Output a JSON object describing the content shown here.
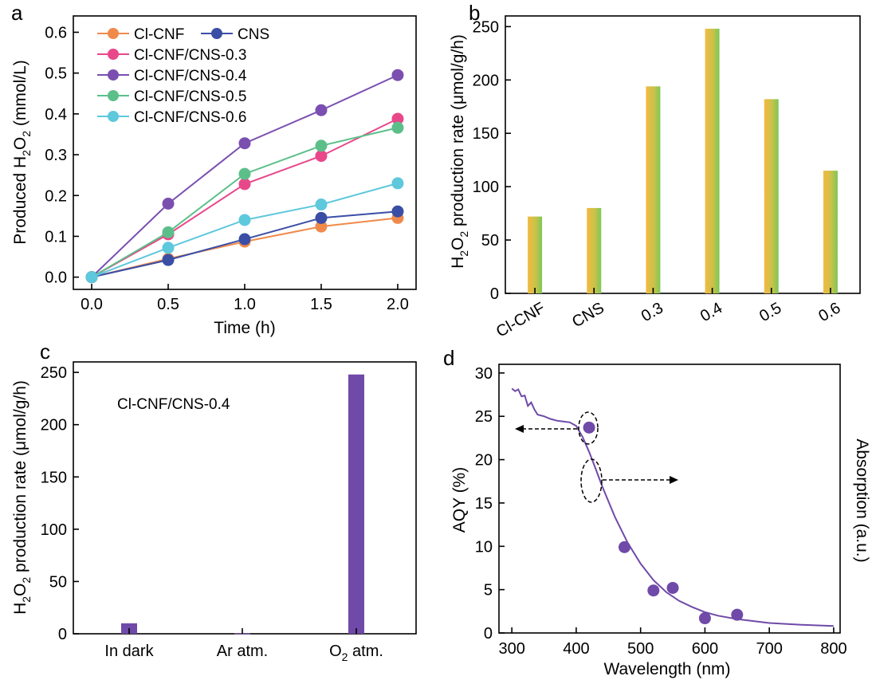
{
  "charts": {
    "a": {
      "panel_letter": "a",
      "ylabel": "Produced H2O2 (mmol/L)",
      "ylabel_parts": {
        "pre": "Produced H",
        "sub1": "2",
        "mid": "O",
        "sub2": "2",
        "post": " (mmol/L)"
      },
      "xlabel": "Time (h)"
    },
    "b": {
      "panel_letter": "b",
      "ylabel": "H2O2 production rate (μmol/g/h)",
      "ylabel_parts": {
        "pre": "H",
        "sub1": "2",
        "mid": "O",
        "sub2": "2",
        "post": " production rate (μmol/g/h)"
      }
    },
    "c": {
      "panel_letter": "c",
      "ylabel": "H2O2 production rate (μmol/g/h)",
      "ylabel_parts": {
        "pre": "H",
        "sub1": "2",
        "mid": "O",
        "sub2": "2",
        "post": " production rate (μmol/g/h)"
      },
      "annotation": "Cl-CNF/CNS-0.4",
      "last_label_parts": {
        "pre": "O",
        "sub": "2",
        "post": " atm."
      }
    },
    "d": {
      "panel_letter": "d",
      "ylabel": "AQY (%)",
      "ylabel_right": "Absorption (a.u.)",
      "xlabel": "Wavelength (nm)"
    }
  },
  "chart_data": [
    {
      "id": "a",
      "type": "line",
      "x": [
        0.0,
        0.5,
        1.0,
        1.5,
        2.0
      ],
      "x_ticks": [
        "0.0",
        "0.5",
        "1.0",
        "1.5",
        "2.0"
      ],
      "xlim": [
        -0.12,
        2.12
      ],
      "ylim": [
        -0.03,
        0.64
      ],
      "y_ticks": [
        "0.0",
        "0.1",
        "0.2",
        "0.3",
        "0.4",
        "0.5",
        "0.6"
      ],
      "xlabel": "Time (h)",
      "ylabel": "Produced H2O2 (mmol/L)",
      "legend_position": "top-left",
      "series": [
        {
          "name": "Cl-CNF",
          "color": "#f08a4b",
          "values": [
            0.0,
            0.045,
            0.087,
            0.124,
            0.145
          ]
        },
        {
          "name": "CNS",
          "color": "#3b4ea5",
          "values": [
            0.0,
            0.042,
            0.093,
            0.145,
            0.161
          ]
        },
        {
          "name": "Cl-CNF/CNS-0.3",
          "color": "#e8488a",
          "values": [
            0.0,
            0.105,
            0.228,
            0.297,
            0.388
          ]
        },
        {
          "name": "Cl-CNF/CNS-0.4",
          "color": "#7a4fb0",
          "values": [
            0.0,
            0.18,
            0.328,
            0.409,
            0.495
          ]
        },
        {
          "name": "Cl-CNF/CNS-0.5",
          "color": "#5cbf8a",
          "values": [
            0.0,
            0.11,
            0.253,
            0.322,
            0.366
          ]
        },
        {
          "name": "Cl-CNF/CNS-0.6",
          "color": "#5ec8dc",
          "values": [
            0.0,
            0.072,
            0.14,
            0.178,
            0.23
          ]
        }
      ]
    },
    {
      "id": "b",
      "type": "bar",
      "categories": [
        "Cl-CNF",
        "CNS",
        "0.3",
        "0.4",
        "0.5",
        "0.6"
      ],
      "values": [
        72,
        80,
        194,
        248,
        182,
        115
      ],
      "ylim": [
        0,
        260
      ],
      "y_ticks": [
        "0",
        "50",
        "100",
        "150",
        "200",
        "250"
      ],
      "ylabel": "H2O2 production rate (μmol/g/h)",
      "bar_colors": [
        "#f5b942",
        "#7cc855"
      ]
    },
    {
      "id": "c",
      "type": "bar",
      "categories": [
        "In dark",
        "Ar atm.",
        "O2 atm."
      ],
      "values": [
        10,
        0.4,
        248
      ],
      "ylim": [
        0,
        260
      ],
      "y_ticks": [
        "0",
        "50",
        "100",
        "150",
        "200",
        "250"
      ],
      "ylabel": "H2O2 production rate (μmol/g/h)",
      "annotation": "Cl-CNF/CNS-0.4",
      "bar_color": "#6f4aa8"
    },
    {
      "id": "d",
      "type": "scatter",
      "xlim": [
        280,
        810
      ],
      "ylim": [
        0,
        31
      ],
      "x_ticks": [
        "300",
        "400",
        "500",
        "600",
        "700",
        "800"
      ],
      "y_ticks": [
        "0",
        "5",
        "10",
        "15",
        "20",
        "25",
        "30"
      ],
      "xlabel": "Wavelength (nm)",
      "ylabel": "AQY (%)",
      "ylabel_right": "Absorption (a.u.)",
      "color": "#6f4aa8",
      "aqy_points": {
        "x": [
          420,
          475,
          520,
          550,
          600,
          650
        ],
        "y": [
          23.7,
          9.9,
          4.9,
          5.2,
          1.7,
          2.1
        ]
      },
      "absorption_curve": {
        "x": [
          300,
          305,
          310,
          315,
          320,
          325,
          330,
          335,
          340,
          350,
          360,
          370,
          380,
          390,
          400,
          410,
          420,
          430,
          440,
          450,
          460,
          480,
          500,
          520,
          540,
          560,
          580,
          600,
          620,
          650,
          700,
          750,
          800
        ],
        "y": [
          28.2,
          27.9,
          28.1,
          27.3,
          27.4,
          26.2,
          26.6,
          25.8,
          25.2,
          25.0,
          24.7,
          24.5,
          24.4,
          24.3,
          23.9,
          22.6,
          20.9,
          19.0,
          17.0,
          15.2,
          13.4,
          10.4,
          8.0,
          6.1,
          4.7,
          3.7,
          3.0,
          2.4,
          2.0,
          1.6,
          1.15,
          0.95,
          0.8
        ]
      }
    }
  ]
}
